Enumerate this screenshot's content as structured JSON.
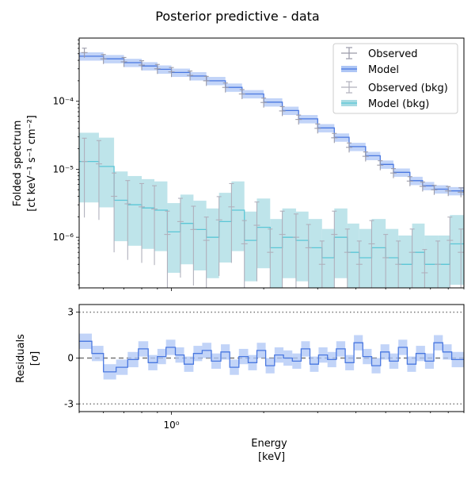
{
  "figure": {
    "title": "Posterior predictive - data"
  },
  "colors": {
    "observed": "#9a9aa8",
    "model": "#4a78e0",
    "model_band": "#aec6f5",
    "observed_bkg": "#b0b0bc",
    "model_bkg": "#5bc6d6",
    "model_bkg_band": "#a8dbe3",
    "zero_line": "#777777",
    "sigma_line": "#777777"
  },
  "chart_data": [
    {
      "type": "line",
      "panel": "spectrum",
      "ylabel_line1": "Folded spectrum",
      "ylabel_line2": "[ct keV⁻¹ s⁻¹ cm⁻²]",
      "xscale": "log",
      "yscale": "log",
      "xlim": [
        0.5,
        9.0
      ],
      "ylim": [
        1.8e-07,
        0.00085
      ],
      "yticks": [
        {
          "value": 1e-06,
          "label": "10⁻⁶"
        },
        {
          "value": 1e-05,
          "label": "10⁻⁵"
        },
        {
          "value": 0.0001,
          "label": "10⁻⁴"
        }
      ],
      "legend": {
        "placement": "top-right",
        "entries": [
          "Observed",
          "Model",
          "Observed (bkg)",
          "Model (bkg)"
        ]
      },
      "series": [
        {
          "name": "Observed",
          "kind": "errorbar",
          "x": [
            0.52,
            0.6,
            0.7,
            0.8,
            0.9,
            1.0,
            1.15,
            1.3,
            1.5,
            1.7,
            2.0,
            2.3,
            2.6,
            3.0,
            3.4,
            3.8,
            4.3,
            4.8,
            5.3,
            6.0,
            6.6,
            7.2,
            8.0,
            8.8
          ],
          "y": [
            0.00052,
            0.00042,
            0.00038,
            0.00034,
            0.0003,
            0.00027,
            0.00024,
            0.0002,
            0.00016,
            0.000128,
            9.6e-05,
            7.2e-05,
            5.4e-05,
            4e-05,
            2.9e-05,
            2.1e-05,
            1.55e-05,
            1.15e-05,
            8.8e-06,
            6.7e-06,
            5.6e-06,
            5e-06,
            4.8e-06,
            4.6e-06
          ],
          "yerr_frac": 0.16
        },
        {
          "name": "Model",
          "kind": "step",
          "x": [
            0.5,
            0.6,
            0.7,
            0.8,
            0.9,
            1.0,
            1.15,
            1.3,
            1.5,
            1.7,
            2.0,
            2.3,
            2.6,
            3.0,
            3.4,
            3.8,
            4.3,
            4.8,
            5.3,
            6.0,
            6.6,
            7.2,
            8.0,
            9.0
          ],
          "y": [
            0.00046,
            0.00042,
            0.00037,
            0.00033,
            0.000295,
            0.000265,
            0.000235,
            0.0002,
            0.00016,
            0.000128,
            9.7e-05,
            7.3e-05,
            5.5e-05,
            4.05e-05,
            2.95e-05,
            2.15e-05,
            1.58e-05,
            1.18e-05,
            9e-06,
            6.8e-06,
            5.7e-06,
            5.1e-06,
            4.8e-06,
            4.7e-06
          ],
          "band_frac": 0.14
        },
        {
          "name": "Observed (bkg)",
          "kind": "errorbar",
          "x": [
            0.52,
            0.58,
            0.65,
            0.72,
            0.8,
            0.88,
            0.97,
            1.07,
            1.18,
            1.3,
            1.43,
            1.57,
            1.73,
            1.9,
            2.1,
            2.3,
            2.55,
            2.8,
            3.1,
            3.4,
            3.75,
            4.1,
            4.5,
            5.0,
            5.5,
            6.1,
            6.7,
            7.4,
            8.1,
            8.8
          ],
          "y": [
            1.3e-05,
            1.2e-05,
            4e-06,
            3.1e-06,
            2.8e-06,
            2.6e-06,
            1.1e-06,
            1.7e-06,
            1.3e-06,
            9e-07,
            1.8e-06,
            2.8e-06,
            8e-07,
            1.5e-06,
            6e-07,
            1.1e-06,
            1e-06,
            7e-07,
            4e-07,
            1.1e-06,
            6e-07,
            4e-07,
            8e-07,
            5e-07,
            4e-07,
            6e-07,
            3e-07,
            4e-07,
            9e-07,
            6e-07
          ],
          "yerr_up_frac": 1.2,
          "yerr_low_frac": 0.85
        },
        {
          "name": "Model (bkg)",
          "kind": "step",
          "x": [
            0.5,
            0.58,
            0.65,
            0.72,
            0.8,
            0.88,
            0.97,
            1.07,
            1.18,
            1.3,
            1.43,
            1.57,
            1.73,
            1.9,
            2.1,
            2.3,
            2.55,
            2.8,
            3.1,
            3.4,
            3.75,
            4.1,
            4.5,
            5.0,
            5.5,
            6.1,
            6.7,
            7.4,
            8.1,
            9.0
          ],
          "y": [
            1.3e-05,
            1.1e-05,
            3.5e-06,
            3e-06,
            2.7e-06,
            2.5e-06,
            1.2e-06,
            1.6e-06,
            1.3e-06,
            1e-06,
            1.7e-06,
            2.5e-06,
            9e-07,
            1.4e-06,
            7e-07,
            1e-06,
            9e-07,
            7e-07,
            5e-07,
            1e-06,
            6e-07,
            5e-07,
            7e-07,
            5e-07,
            4e-07,
            6e-07,
            4e-07,
            4e-07,
            8e-07,
            6e-07
          ],
          "band_frac": 0.75
        }
      ]
    },
    {
      "type": "line",
      "panel": "residuals",
      "ylabel_line1": "Residuals",
      "ylabel_line2": "[σ]",
      "xlabel_line1": "Energy",
      "xlabel_line2": "[keV]",
      "xscale": "log",
      "xlim": [
        0.5,
        9.0
      ],
      "ylim": [
        -3.5,
        3.5
      ],
      "xticks": [
        {
          "value": 1.0,
          "label": "10⁰"
        }
      ],
      "yticks": [
        {
          "value": -3,
          "label": "-3"
        },
        {
          "value": 0,
          "label": "0"
        },
        {
          "value": 3,
          "label": "3"
        }
      ],
      "series": [
        {
          "name": "Residuals",
          "kind": "step",
          "x": [
            0.5,
            0.55,
            0.6,
            0.66,
            0.72,
            0.78,
            0.84,
            0.9,
            0.96,
            1.03,
            1.1,
            1.18,
            1.26,
            1.35,
            1.45,
            1.55,
            1.66,
            1.78,
            1.9,
            2.03,
            2.17,
            2.32,
            2.48,
            2.65,
            2.83,
            3.02,
            3.23,
            3.45,
            3.69,
            3.94,
            4.21,
            4.5,
            4.81,
            5.14,
            5.5,
            5.88,
            6.28,
            6.72,
            7.18,
            7.68,
            8.21,
            9.0
          ],
          "y": [
            1.1,
            0.3,
            -0.9,
            -0.6,
            -0.1,
            0.6,
            -0.3,
            0.1,
            0.7,
            0.2,
            -0.4,
            0.3,
            0.5,
            -0.2,
            0.4,
            -0.6,
            0.1,
            -0.3,
            0.5,
            -0.5,
            0.2,
            0.0,
            -0.2,
            0.6,
            -0.4,
            0.2,
            -0.1,
            0.6,
            -0.3,
            1.0,
            0.1,
            -0.5,
            0.4,
            -0.2,
            0.7,
            -0.4,
            0.3,
            -0.2,
            1.0,
            0.4,
            -0.1,
            -0.3
          ],
          "band_halfwidth": 0.5
        }
      ],
      "reference_lines": [
        {
          "y": 3,
          "style": "dotted"
        },
        {
          "y": 0,
          "style": "dashed"
        },
        {
          "y": -3,
          "style": "dotted"
        }
      ]
    }
  ]
}
